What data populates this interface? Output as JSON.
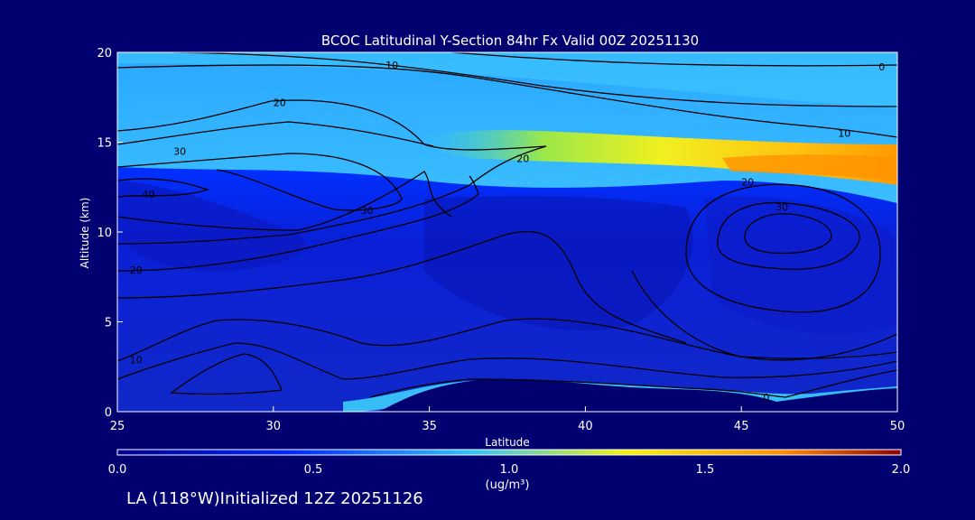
{
  "chart_data": {
    "type": "heatmap",
    "title": "BCOC Latitudinal Y-Section 84hr  Fx Valid 00Z 20251130",
    "xlabel": "Latitude",
    "ylabel": "Altitude (km)",
    "xlim": [
      25,
      50
    ],
    "ylim": [
      0,
      20
    ],
    "x_ticks": [
      25,
      30,
      35,
      40,
      45,
      50
    ],
    "y_ticks": [
      0,
      5,
      10,
      15,
      20
    ],
    "colorbar": {
      "range": [
        0.0,
        2.0
      ],
      "ticks": [
        "0.0",
        "0.5",
        "1.0",
        "1.5",
        "2.0"
      ],
      "unit": "(ug/m³)",
      "colors": [
        "#00008c",
        "#0028ff",
        "#2ec2ff",
        "#f3f30a",
        "#ff8c00",
        "#8b0000"
      ]
    },
    "concentration_bands": [
      {
        "lat": [
          25,
          50
        ],
        "alt": [
          15.5,
          20
        ],
        "value": 0.45
      },
      {
        "lat": [
          35,
          50
        ],
        "alt": [
          14,
          15.5
        ],
        "value": 1.15
      },
      {
        "lat": [
          42,
          50
        ],
        "alt": [
          13,
          14.5
        ],
        "value": 1.35
      },
      {
        "lat": [
          25,
          50
        ],
        "alt": [
          0,
          12
        ],
        "value": 0.15
      },
      {
        "lat": [
          33,
          50
        ],
        "alt": [
          1,
          1.6
        ],
        "value": 0.5
      }
    ],
    "contour_labels": [
      {
        "text": "10",
        "lat": 33.8,
        "alt": 19.3
      },
      {
        "text": "0",
        "lat": 49.5,
        "alt": 19.2
      },
      {
        "text": "20",
        "lat": 30.2,
        "alt": 17.2
      },
      {
        "text": "10",
        "lat": 48.3,
        "alt": 15.5
      },
      {
        "text": "30",
        "lat": 27.0,
        "alt": 14.5
      },
      {
        "text": "20",
        "lat": 38.0,
        "alt": 14.1
      },
      {
        "text": "20",
        "lat": 45.2,
        "alt": 12.8
      },
      {
        "text": "30",
        "lat": 46.3,
        "alt": 11.4
      },
      {
        "text": "40",
        "lat": 26.0,
        "alt": 12.1
      },
      {
        "text": "30",
        "lat": 33.0,
        "alt": 11.2
      },
      {
        "text": "20",
        "lat": 25.6,
        "alt": 7.9
      },
      {
        "text": "10",
        "lat": 25.6,
        "alt": 2.9
      },
      {
        "text": "0",
        "lat": 45.8,
        "alt": 0.8
      }
    ]
  },
  "footer": "LA (118°W)Initialized 12Z 20251126"
}
